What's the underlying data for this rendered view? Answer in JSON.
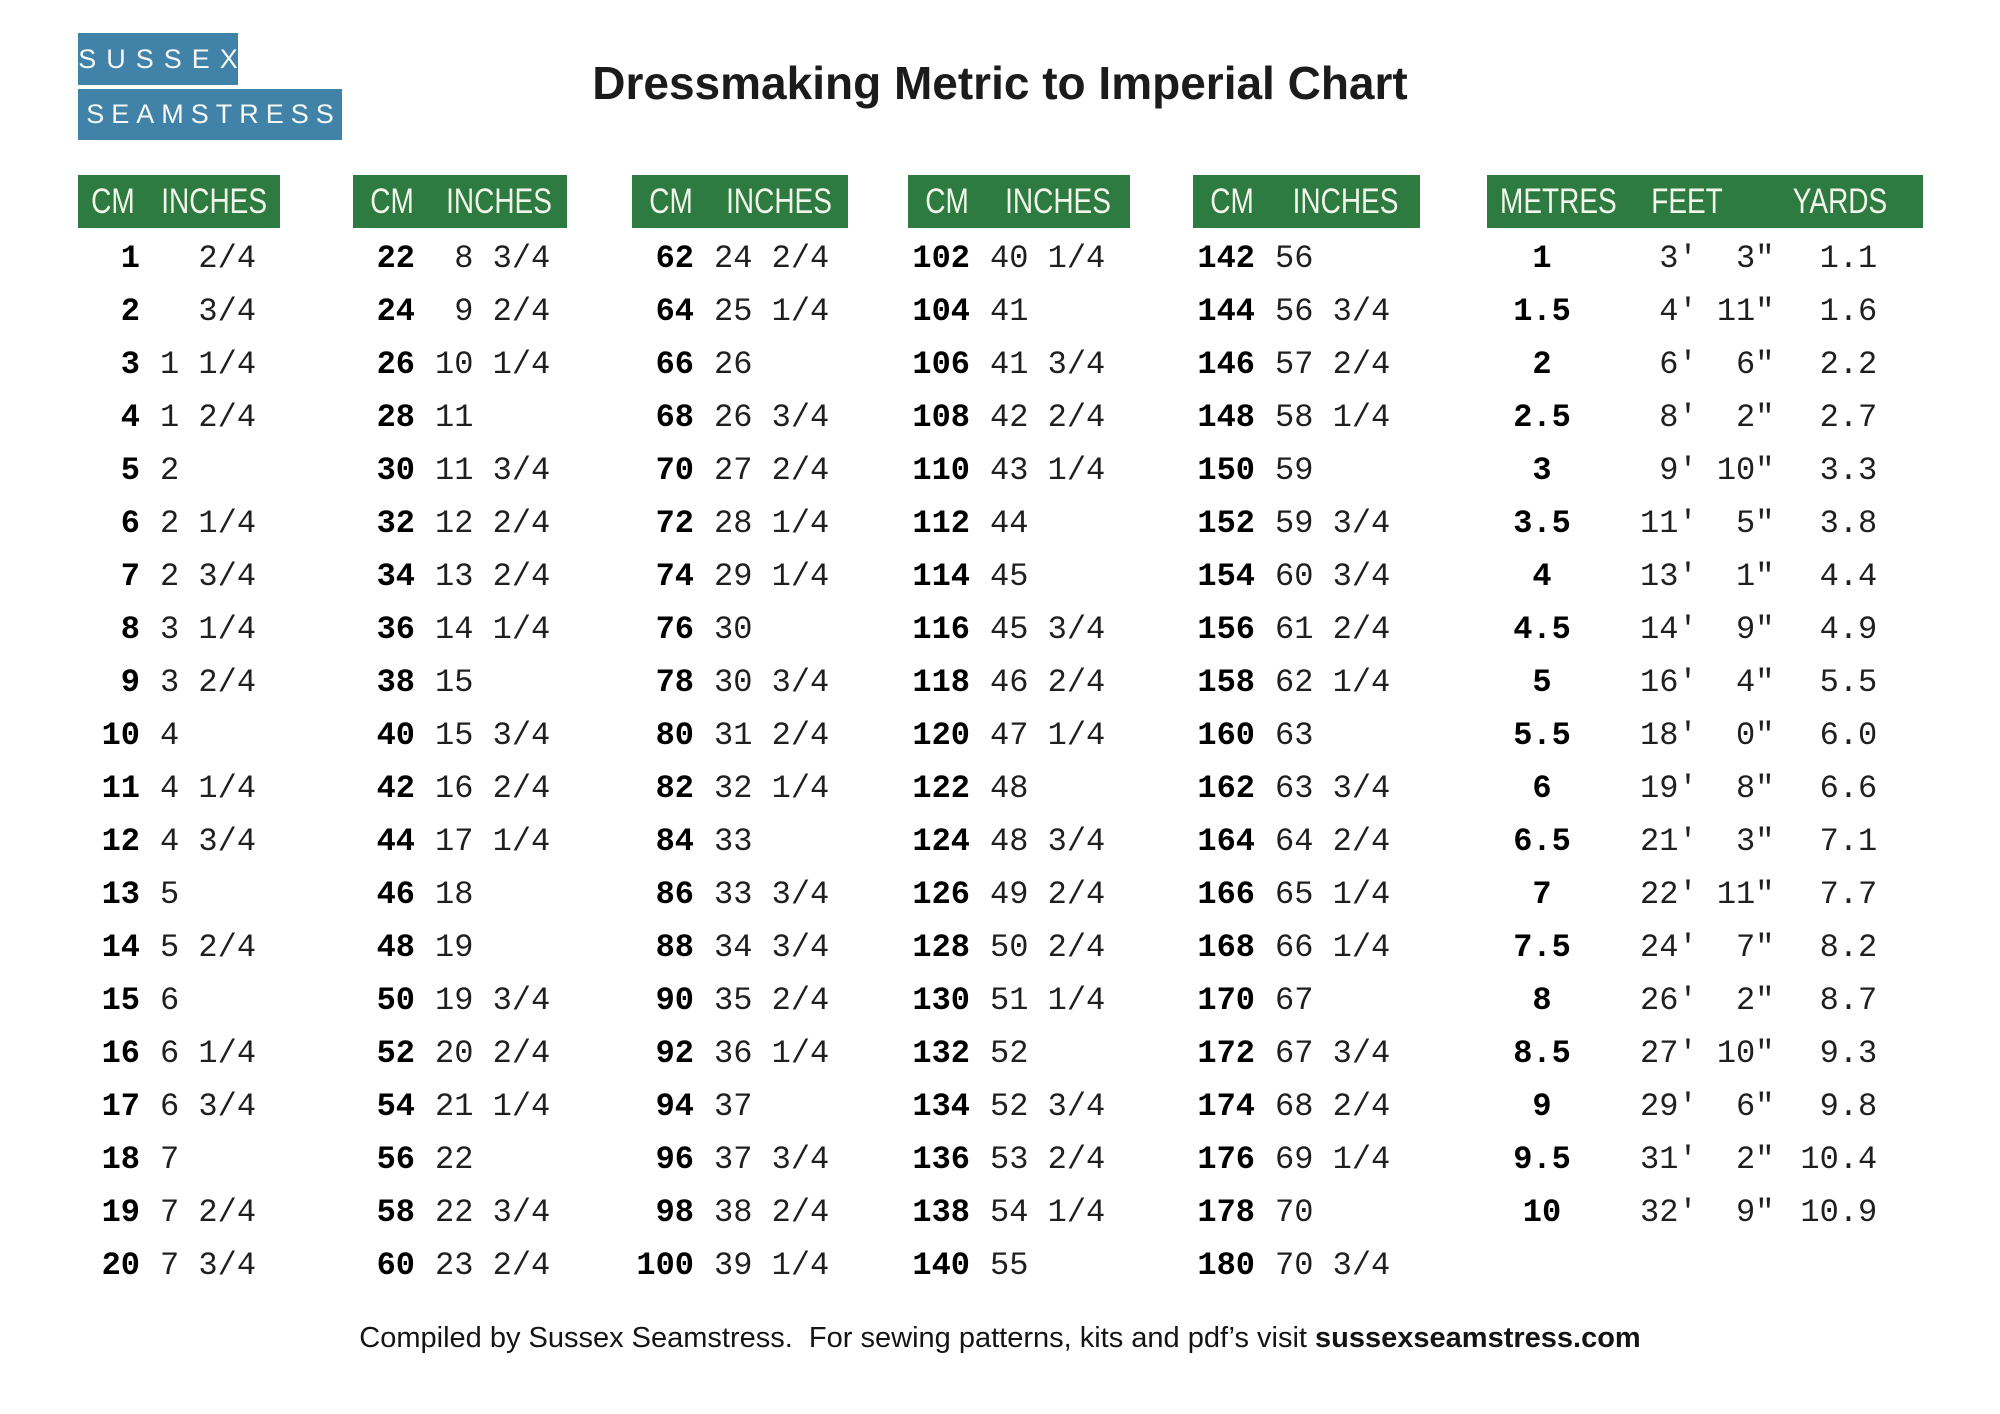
{
  "logo": {
    "line1": "SUSSEX",
    "line2": "SEAMSTRESS"
  },
  "title": "Dressmaking Metric to Imperial Chart",
  "colors": {
    "green_header": "#2d7b40",
    "blue_logo": "#4183a8",
    "header_text": "#f2f6ea"
  },
  "cm_tables": [
    {
      "headers": [
        "CM",
        "INCHES"
      ],
      "rows": [
        [
          "1",
          "  2/4"
        ],
        [
          "2",
          "  3/4"
        ],
        [
          "3",
          "1 1/4"
        ],
        [
          "4",
          "1 2/4"
        ],
        [
          "5",
          "2"
        ],
        [
          "6",
          "2 1/4"
        ],
        [
          "7",
          "2 3/4"
        ],
        [
          "8",
          "3 1/4"
        ],
        [
          "9",
          "3 2/4"
        ],
        [
          "10",
          "4"
        ],
        [
          "11",
          "4 1/4"
        ],
        [
          "12",
          "4 3/4"
        ],
        [
          "13",
          "5"
        ],
        [
          "14",
          "5 2/4"
        ],
        [
          "15",
          "6"
        ],
        [
          "16",
          "6 1/4"
        ],
        [
          "17",
          "6 3/4"
        ],
        [
          "18",
          "7"
        ],
        [
          "19",
          "7 2/4"
        ],
        [
          "20",
          "7 3/4"
        ]
      ]
    },
    {
      "headers": [
        "CM",
        "INCHES"
      ],
      "rows": [
        [
          "22",
          " 8 3/4"
        ],
        [
          "24",
          " 9 2/4"
        ],
        [
          "26",
          "10 1/4"
        ],
        [
          "28",
          "11"
        ],
        [
          "30",
          "11 3/4"
        ],
        [
          "32",
          "12 2/4"
        ],
        [
          "34",
          "13 2/4"
        ],
        [
          "36",
          "14 1/4"
        ],
        [
          "38",
          "15"
        ],
        [
          "40",
          "15 3/4"
        ],
        [
          "42",
          "16 2/4"
        ],
        [
          "44",
          "17 1/4"
        ],
        [
          "46",
          "18"
        ],
        [
          "48",
          "19"
        ],
        [
          "50",
          "19 3/4"
        ],
        [
          "52",
          "20 2/4"
        ],
        [
          "54",
          "21 1/4"
        ],
        [
          "56",
          "22"
        ],
        [
          "58",
          "22 3/4"
        ],
        [
          "60",
          "23 2/4"
        ]
      ]
    },
    {
      "headers": [
        "CM",
        "INCHES"
      ],
      "rows": [
        [
          "62",
          "24 2/4"
        ],
        [
          "64",
          "25 1/4"
        ],
        [
          "66",
          "26"
        ],
        [
          "68",
          "26 3/4"
        ],
        [
          "70",
          "27 2/4"
        ],
        [
          "72",
          "28 1/4"
        ],
        [
          "74",
          "29 1/4"
        ],
        [
          "76",
          "30"
        ],
        [
          "78",
          "30 3/4"
        ],
        [
          "80",
          "31 2/4"
        ],
        [
          "82",
          "32 1/4"
        ],
        [
          "84",
          "33"
        ],
        [
          "86",
          "33 3/4"
        ],
        [
          "88",
          "34 3/4"
        ],
        [
          "90",
          "35 2/4"
        ],
        [
          "92",
          "36 1/4"
        ],
        [
          "94",
          "37"
        ],
        [
          "96",
          "37 3/4"
        ],
        [
          "98",
          "38 2/4"
        ],
        [
          "100",
          "39 1/4"
        ]
      ]
    },
    {
      "headers": [
        "CM",
        "INCHES"
      ],
      "rows": [
        [
          "102",
          "40 1/4"
        ],
        [
          "104",
          "41"
        ],
        [
          "106",
          "41 3/4"
        ],
        [
          "108",
          "42 2/4"
        ],
        [
          "110",
          "43 1/4"
        ],
        [
          "112",
          "44"
        ],
        [
          "114",
          "45"
        ],
        [
          "116",
          "45 3/4"
        ],
        [
          "118",
          "46 2/4"
        ],
        [
          "120",
          "47 1/4"
        ],
        [
          "122",
          "48"
        ],
        [
          "124",
          "48 3/4"
        ],
        [
          "126",
          "49 2/4"
        ],
        [
          "128",
          "50 2/4"
        ],
        [
          "130",
          "51 1/4"
        ],
        [
          "132",
          "52"
        ],
        [
          "134",
          "52 3/4"
        ],
        [
          "136",
          "53 2/4"
        ],
        [
          "138",
          "54 1/4"
        ],
        [
          "140",
          "55"
        ]
      ]
    },
    {
      "headers": [
        "CM",
        "INCHES"
      ],
      "rows": [
        [
          "142",
          "56"
        ],
        [
          "144",
          "56 3/4"
        ],
        [
          "146",
          "57 2/4"
        ],
        [
          "148",
          "58 1/4"
        ],
        [
          "150",
          "59"
        ],
        [
          "152",
          "59 3/4"
        ],
        [
          "154",
          "60 3/4"
        ],
        [
          "156",
          "61 2/4"
        ],
        [
          "158",
          "62 1/4"
        ],
        [
          "160",
          "63"
        ],
        [
          "162",
          "63 3/4"
        ],
        [
          "164",
          "64 2/4"
        ],
        [
          "166",
          "65 1/4"
        ],
        [
          "168",
          "66 1/4"
        ],
        [
          "170",
          "67"
        ],
        [
          "172",
          "67 3/4"
        ],
        [
          "174",
          "68 2/4"
        ],
        [
          "176",
          "69 1/4"
        ],
        [
          "178",
          "70"
        ],
        [
          "180",
          "70 3/4"
        ]
      ]
    }
  ],
  "metric_table": {
    "headers": [
      "METRES",
      "FEET",
      "YARDS"
    ],
    "rows": [
      [
        "1",
        " 3'  3\"",
        " 1.1"
      ],
      [
        "1.5",
        " 4' 11\"",
        " 1.6"
      ],
      [
        "2",
        " 6'  6\"",
        " 2.2"
      ],
      [
        "2.5",
        " 8'  2\"",
        " 2.7"
      ],
      [
        "3",
        " 9' 10\"",
        " 3.3"
      ],
      [
        "3.5",
        "11'  5\"",
        " 3.8"
      ],
      [
        "4",
        "13'  1\"",
        " 4.4"
      ],
      [
        "4.5",
        "14'  9\"",
        " 4.9"
      ],
      [
        "5",
        "16'  4\"",
        " 5.5"
      ],
      [
        "5.5",
        "18'  0\"",
        " 6.0"
      ],
      [
        "6",
        "19'  8\"",
        " 6.6"
      ],
      [
        "6.5",
        "21'  3\"",
        " 7.1"
      ],
      [
        "7",
        "22' 11\"",
        " 7.7"
      ],
      [
        "7.5",
        "24'  7\"",
        " 8.2"
      ],
      [
        "8",
        "26'  2\"",
        " 8.7"
      ],
      [
        "8.5",
        "27' 10\"",
        " 9.3"
      ],
      [
        "9",
        "29'  6\"",
        " 9.8"
      ],
      [
        "9.5",
        "31'  2\"",
        "10.4"
      ],
      [
        "10",
        "32'  9\"",
        "10.9"
      ]
    ]
  },
  "footer": {
    "text": "Compiled by Sussex Seamstress.  For sewing patterns, kits and pdf’s visit ",
    "website": "sussexseamstress.com"
  }
}
